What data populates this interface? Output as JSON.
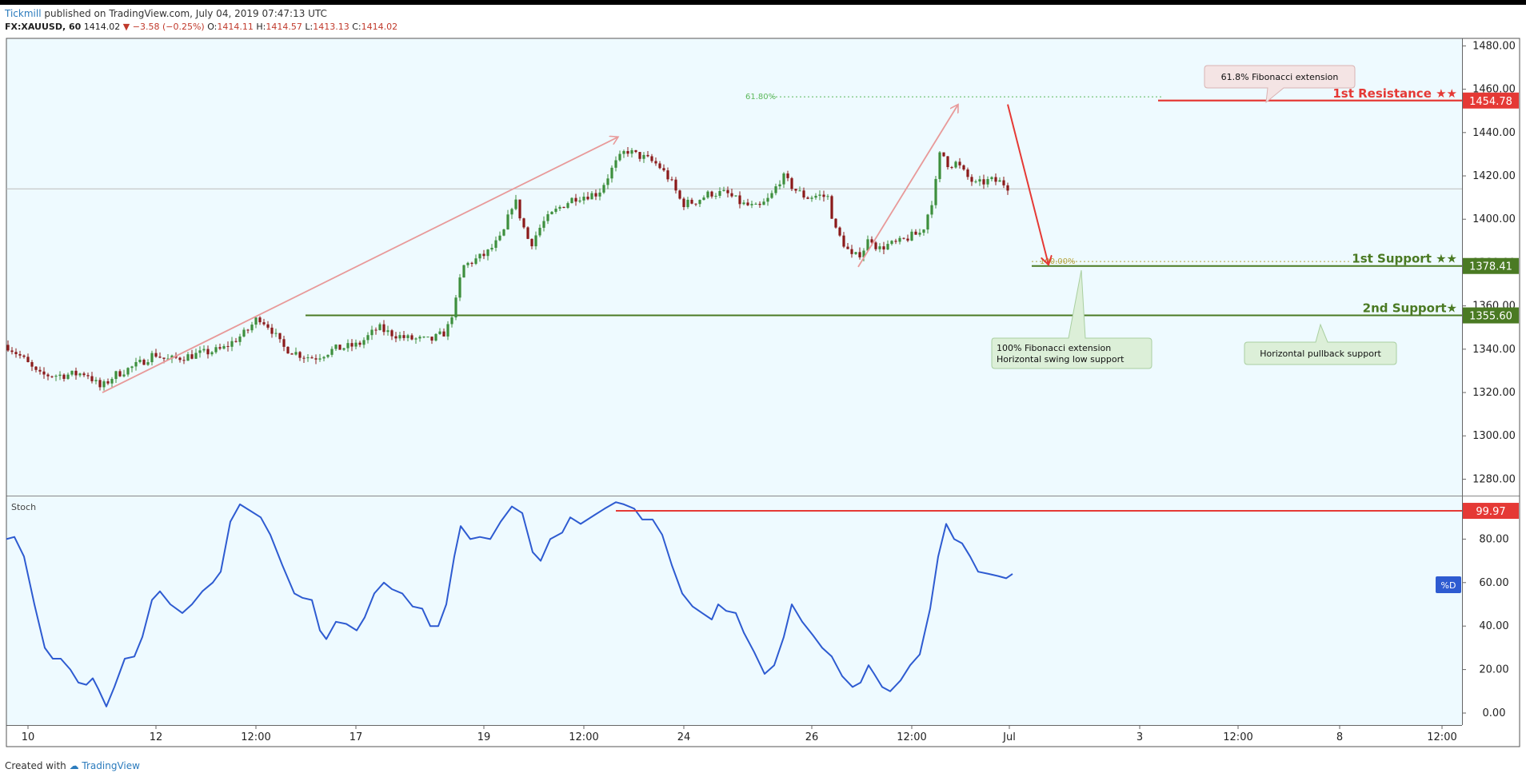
{
  "header": {
    "publisher": "Tickmill",
    "published_text": "published on TradingView.com, July 04, 2019 07:47:13 UTC",
    "symbol": "FX:XAUUSD, 60",
    "last": "1414.02",
    "change": "−3.58 (−0.25%)",
    "open_label": "O:",
    "open": "1414.11",
    "high_label": "H:",
    "high": "1414.57",
    "low_label": "L:",
    "low": "1413.13",
    "close_label": "C:",
    "close": "1414.02"
  },
  "footer": {
    "created_with": "Created with",
    "brand": "TradingView"
  },
  "colors": {
    "panel_bg": "#eefaff",
    "candle_up": "#3d8f3d",
    "candle_down": "#8b1a1a",
    "resistance": "#e53935",
    "support": "#4a7a23",
    "stoch_line": "#2e5bd1",
    "fib_text": "#5cb85c",
    "trend_arrow": "#e89a9a"
  },
  "chart_data": [
    {
      "type": "candlestick",
      "symbol": "FX:XAUUSD",
      "timeframe": "60",
      "ylim": [
        1270,
        1485
      ],
      "yticks": [
        "1280.00",
        "1300.00",
        "1320.00",
        "1340.00",
        "1360.00",
        "1380.00",
        "1400.00",
        "1420.00",
        "1440.00",
        "1460.00",
        "1480.00"
      ],
      "xticks": [
        "10",
        "12",
        "12:00",
        "17",
        "19",
        "12:00",
        "24",
        "26",
        "12:00",
        "Jul",
        "3",
        "12:00",
        "8",
        "12:00"
      ],
      "price_path": [
        [
          0,
          1342
        ],
        [
          20,
          1336
        ],
        [
          40,
          1328
        ],
        [
          70,
          1328
        ],
        [
          100,
          1329
        ],
        [
          118,
          1322
        ],
        [
          135,
          1328
        ],
        [
          165,
          1333
        ],
        [
          185,
          1338
        ],
        [
          200,
          1335
        ],
        [
          230,
          1337
        ],
        [
          270,
          1340
        ],
        [
          300,
          1348
        ],
        [
          315,
          1355
        ],
        [
          330,
          1350
        ],
        [
          345,
          1341
        ],
        [
          370,
          1337
        ],
        [
          385,
          1336
        ],
        [
          410,
          1340
        ],
        [
          440,
          1342
        ],
        [
          465,
          1350
        ],
        [
          475,
          1348
        ],
        [
          500,
          1345
        ],
        [
          530,
          1344
        ],
        [
          550,
          1348
        ],
        [
          562,
          1362
        ],
        [
          570,
          1378
        ],
        [
          600,
          1384
        ],
        [
          620,
          1392
        ],
        [
          635,
          1410
        ],
        [
          645,
          1398
        ],
        [
          655,
          1388
        ],
        [
          670,
          1398
        ],
        [
          690,
          1405
        ],
        [
          710,
          1410
        ],
        [
          740,
          1412
        ],
        [
          760,
          1425
        ],
        [
          775,
          1432
        ],
        [
          785,
          1430
        ],
        [
          800,
          1428
        ],
        [
          815,
          1425
        ],
        [
          830,
          1418
        ],
        [
          845,
          1407
        ],
        [
          860,
          1408
        ],
        [
          880,
          1412
        ],
        [
          900,
          1412
        ],
        [
          920,
          1407
        ],
        [
          940,
          1405
        ],
        [
          955,
          1410
        ],
        [
          970,
          1420
        ],
        [
          985,
          1414
        ],
        [
          1000,
          1410
        ],
        [
          1015,
          1411
        ],
        [
          1028,
          1410
        ],
        [
          1035,
          1396
        ],
        [
          1045,
          1390
        ],
        [
          1058,
          1382
        ],
        [
          1070,
          1385
        ],
        [
          1080,
          1392
        ],
        [
          1090,
          1386
        ],
        [
          1100,
          1388
        ],
        [
          1115,
          1389
        ],
        [
          1130,
          1392
        ],
        [
          1145,
          1394
        ],
        [
          1160,
          1412
        ],
        [
          1168,
          1432
        ],
        [
          1178,
          1425
        ],
        [
          1188,
          1426
        ],
        [
          1200,
          1420
        ],
        [
          1212,
          1416
        ],
        [
          1230,
          1418
        ],
        [
          1245,
          1417
        ],
        [
          1256,
          1414
        ]
      ],
      "current_price": "1414.02",
      "levels": [
        {
          "label": "1st Resistance ★★",
          "price": "1454.78"
        },
        {
          "label": "1st Support ★★",
          "price": "1378.41"
        },
        {
          "label": "2nd Support★",
          "price": "1355.60"
        }
      ],
      "fib_levels": [
        {
          "label": "61.80%",
          "price": 1456.5
        },
        {
          "label": "100.00%",
          "price": 1380.5
        }
      ],
      "annotations": [
        {
          "id": "fib-ext",
          "text": "61.8% Fibonacci extension"
        },
        {
          "id": "swing-low",
          "lines": [
            "100% Fibonacci extension",
            "Horizontal swing low support"
          ]
        },
        {
          "id": "pullback",
          "text": "Horizontal pullback support"
        }
      ],
      "trend_arrows": [
        {
          "from": [
            120,
            1320
          ],
          "to": [
            765,
            1438
          ]
        },
        {
          "from": [
            1065,
            1378
          ],
          "to": [
            1190,
            1453
          ]
        }
      ],
      "projection_arrow": {
        "from": [
          1252,
          1453
        ],
        "to": [
          1303,
          1379
        ]
      }
    },
    {
      "type": "line",
      "name": "Stoch",
      "ylim": [
        -5,
        100
      ],
      "yticks": [
        "0.00",
        "20.00",
        "40.00",
        "60.00",
        "80.00"
      ],
      "badge": "%D",
      "level_value": "99.97",
      "level_line": {
        "x_start": 762,
        "value": 93
      },
      "path": [
        [
          0,
          80
        ],
        [
          10,
          81
        ],
        [
          22,
          72
        ],
        [
          35,
          50
        ],
        [
          48,
          30
        ],
        [
          58,
          25
        ],
        [
          68,
          25
        ],
        [
          80,
          20
        ],
        [
          90,
          14
        ],
        [
          100,
          13
        ],
        [
          108,
          16
        ],
        [
          115,
          11
        ],
        [
          125,
          3
        ],
        [
          135,
          12
        ],
        [
          148,
          25
        ],
        [
          160,
          26
        ],
        [
          170,
          35
        ],
        [
          182,
          52
        ],
        [
          192,
          56
        ],
        [
          205,
          50
        ],
        [
          220,
          46
        ],
        [
          232,
          50
        ],
        [
          245,
          56
        ],
        [
          258,
          60
        ],
        [
          268,
          65
        ],
        [
          280,
          88
        ],
        [
          292,
          96
        ],
        [
          305,
          93
        ],
        [
          318,
          90
        ],
        [
          330,
          82
        ],
        [
          345,
          68
        ],
        [
          360,
          55
        ],
        [
          370,
          53
        ],
        [
          382,
          52
        ],
        [
          392,
          38
        ],
        [
          400,
          34
        ],
        [
          412,
          42
        ],
        [
          425,
          41
        ],
        [
          438,
          38
        ],
        [
          448,
          44
        ],
        [
          460,
          55
        ],
        [
          472,
          60
        ],
        [
          482,
          57
        ],
        [
          495,
          55
        ],
        [
          508,
          49
        ],
        [
          520,
          48
        ],
        [
          530,
          40
        ],
        [
          540,
          40
        ],
        [
          550,
          50
        ],
        [
          560,
          72
        ],
        [
          568,
          86
        ],
        [
          580,
          80
        ],
        [
          592,
          81
        ],
        [
          605,
          80
        ],
        [
          618,
          88
        ],
        [
          632,
          95
        ],
        [
          645,
          92
        ],
        [
          658,
          74
        ],
        [
          668,
          70
        ],
        [
          680,
          80
        ],
        [
          695,
          83
        ],
        [
          705,
          90
        ],
        [
          718,
          87
        ],
        [
          735,
          91
        ],
        [
          748,
          94
        ],
        [
          762,
          97
        ],
        [
          772,
          96
        ],
        [
          785,
          94
        ],
        [
          795,
          89
        ],
        [
          808,
          89
        ],
        [
          820,
          82
        ],
        [
          832,
          68
        ],
        [
          845,
          55
        ],
        [
          858,
          49
        ],
        [
          870,
          46
        ],
        [
          882,
          43
        ],
        [
          890,
          50
        ],
        [
          900,
          47
        ],
        [
          912,
          46
        ],
        [
          922,
          37
        ],
        [
          935,
          28
        ],
        [
          948,
          18
        ],
        [
          960,
          22
        ],
        [
          972,
          35
        ],
        [
          982,
          50
        ],
        [
          995,
          42
        ],
        [
          1008,
          36
        ],
        [
          1020,
          30
        ],
        [
          1032,
          26
        ],
        [
          1045,
          17
        ],
        [
          1058,
          12
        ],
        [
          1068,
          14
        ],
        [
          1078,
          22
        ],
        [
          1085,
          18
        ],
        [
          1095,
          12
        ],
        [
          1105,
          10
        ],
        [
          1118,
          15
        ],
        [
          1130,
          22
        ],
        [
          1142,
          27
        ],
        [
          1155,
          48
        ],
        [
          1165,
          72
        ],
        [
          1175,
          87
        ],
        [
          1185,
          80
        ],
        [
          1195,
          78
        ],
        [
          1205,
          72
        ],
        [
          1215,
          65
        ],
        [
          1228,
          64
        ],
        [
          1240,
          63
        ],
        [
          1250,
          62
        ],
        [
          1258,
          64
        ]
      ]
    }
  ]
}
